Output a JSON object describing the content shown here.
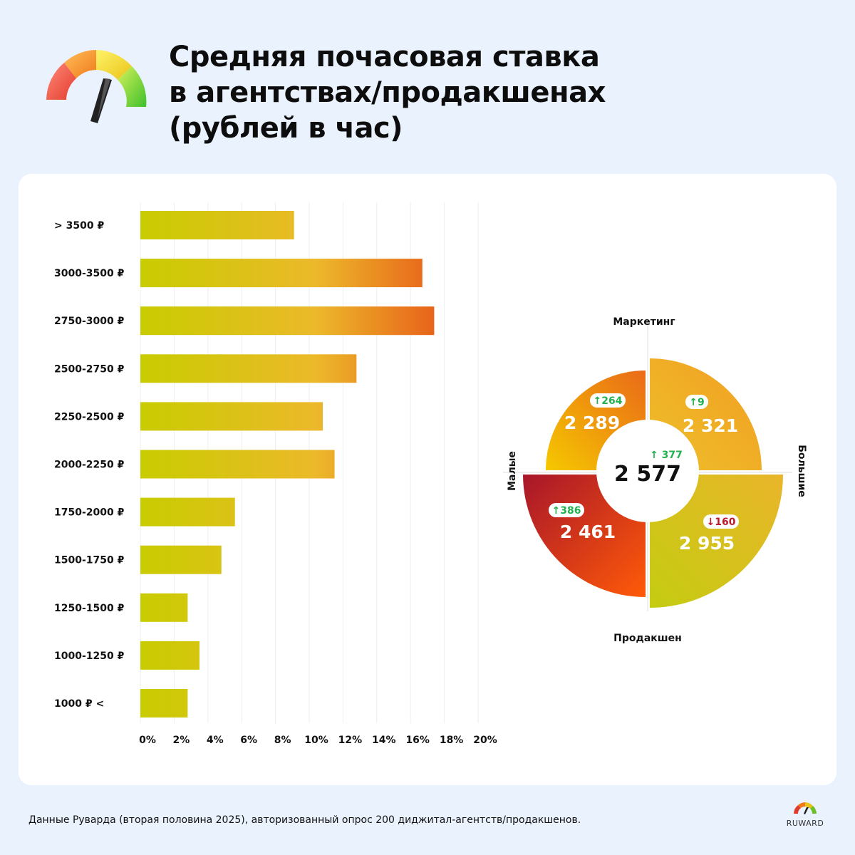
{
  "title": {
    "line1": "Средняя почасовая ставка",
    "line2": "в агентствах/продакшенах",
    "line3": "(рублей в час)"
  },
  "footnote": "Данные Руварда (вторая половина 2025), авторизованный опрос 200 диджитал-агентств/продакшенов.",
  "brand": "RUWARD",
  "colors": {
    "background": "#eaf2fe",
    "card": "#ffffff",
    "bar_start": "#c8cc00",
    "bar_end": "#e8641a",
    "up": "#22b14c",
    "down": "#c0182a"
  },
  "icons": {
    "logo": "speedometer-gauge-icon",
    "brand_logo": "ruward-gauge-icon"
  },
  "chart_data": [
    {
      "type": "bar",
      "orientation": "horizontal",
      "categories": [
        "> 3500 ₽",
        "3000-3500 ₽",
        "2750-3000 ₽",
        "2500-2750 ₽",
        "2250-2500 ₽",
        "2000-2250 ₽",
        "1750-2000 ₽",
        "1500-1750 ₽",
        "1250-1500 ₽",
        "1000-1250 ₽",
        "1000 ₽ <"
      ],
      "values": [
        9.1,
        16.7,
        17.4,
        12.8,
        10.8,
        11.5,
        5.6,
        4.8,
        2.8,
        3.5,
        2.8
      ],
      "x_ticks": [
        "0%",
        "2%",
        "4%",
        "6%",
        "8%",
        "10%",
        "12%",
        "14%",
        "16%",
        "18%",
        "20%"
      ],
      "xlim": [
        0,
        20
      ],
      "grid": true
    },
    {
      "type": "quadrant",
      "center": {
        "value": "2 577",
        "delta": "377",
        "direction": "up"
      },
      "axes": {
        "top": "Маркетинг",
        "bottom": "Продакшен",
        "left": "Малые",
        "right": "Большие"
      },
      "quadrants": [
        {
          "id": "top-left",
          "value": "2 289",
          "delta": "264",
          "direction": "up",
          "colors": [
            "#f5c800",
            "#ea6a18"
          ]
        },
        {
          "id": "top-right",
          "value": "2 321",
          "delta": "9",
          "direction": "up",
          "colors": [
            "#f29d22",
            "#eec02a"
          ]
        },
        {
          "id": "bottom-left",
          "value": "2 461",
          "delta": "386",
          "direction": "up",
          "colors": [
            "#a8162a",
            "#ff5a08"
          ]
        },
        {
          "id": "bottom-right",
          "value": "2 955",
          "delta": "160",
          "direction": "down",
          "colors": [
            "#e9b52a",
            "#c4cc10"
          ]
        }
      ]
    }
  ]
}
